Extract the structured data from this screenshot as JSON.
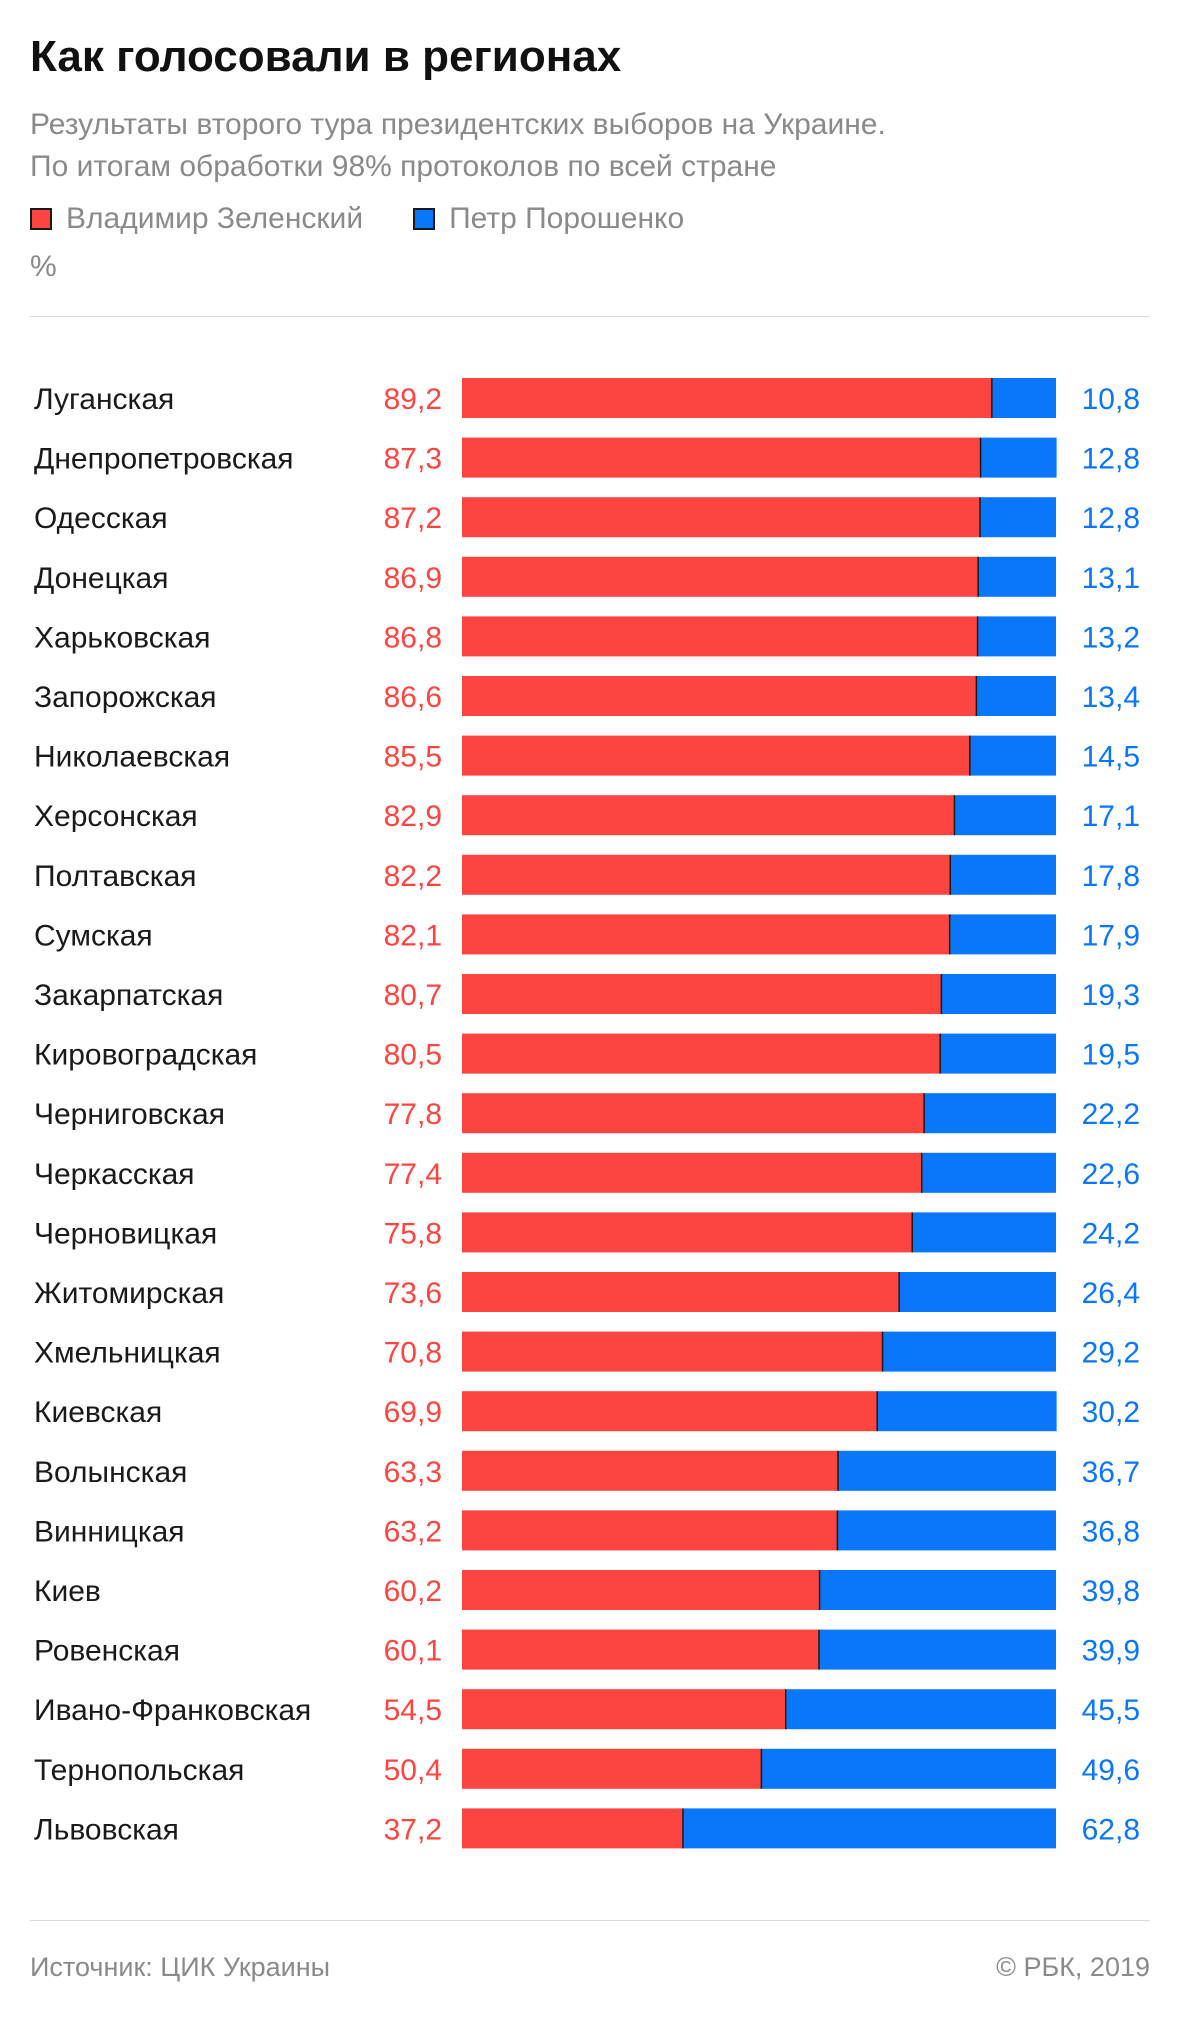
{
  "header": {
    "title": "Как голосовали в регионах",
    "subtitle_line1": "Результаты второго тура президентских выборов на Украине.",
    "subtitle_line2": "По итогам обработки 98% протоколов по всей стране",
    "unit": "%"
  },
  "legend": [
    {
      "label": "Владимир Зеленский",
      "color": "#fc4440"
    },
    {
      "label": "Петр Порошенко",
      "color": "#0a76fa"
    }
  ],
  "footer": {
    "source": "Источник: ЦИК Украины",
    "copyright": "© РБК, 2019"
  },
  "chart_data": {
    "type": "bar",
    "orientation": "horizontal",
    "stacked": true,
    "categories": [
      "Луганская",
      "Днепропетровская",
      "Одесская",
      "Донецкая",
      "Харьковская",
      "Запорожская",
      "Николаевская",
      "Херсонская",
      "Полтавская",
      "Сумская",
      "Закарпатская",
      "Кировоградская",
      "Черниговская",
      "Черкасская",
      "Черновицкая",
      "Житомирская",
      "Хмельницкая",
      "Киевская",
      "Волынская",
      "Винницкая",
      "Киев",
      "Ровенская",
      "Ивано-Франковская",
      "Тернопольская",
      "Львовская"
    ],
    "series": [
      {
        "name": "Владимир Зеленский",
        "color": "#fc4440",
        "values": [
          89.2,
          87.3,
          87.2,
          86.9,
          86.8,
          86.6,
          85.5,
          82.9,
          82.2,
          82.1,
          80.7,
          80.5,
          77.8,
          77.4,
          75.8,
          73.6,
          70.8,
          69.9,
          63.3,
          63.2,
          60.2,
          60.1,
          54.5,
          50.4,
          37.2
        ],
        "labels": [
          "89,2",
          "87,3",
          "87,2",
          "86,9",
          "86,8",
          "86,6",
          "85,5",
          "82,9",
          "82,2",
          "82,1",
          "80,7",
          "80,5",
          "77,8",
          "77,4",
          "75,8",
          "73,6",
          "70,8",
          "69,9",
          "63,3",
          "63,2",
          "60,2",
          "60,1",
          "54,5",
          "50,4",
          "37,2"
        ]
      },
      {
        "name": "Петр Порошенко",
        "color": "#0a76fa",
        "values": [
          10.8,
          12.8,
          12.8,
          13.1,
          13.2,
          13.4,
          14.5,
          17.1,
          17.8,
          17.9,
          19.3,
          19.5,
          22.2,
          22.6,
          24.2,
          26.4,
          29.2,
          30.2,
          36.7,
          36.8,
          39.8,
          39.9,
          45.5,
          49.6,
          62.8
        ],
        "labels": [
          "10,8",
          "12,8",
          "12,8",
          "13,1",
          "13,2",
          "13,4",
          "14,5",
          "17,1",
          "17,8",
          "17,9",
          "19,3",
          "19,5",
          "22,2",
          "22,6",
          "24,2",
          "26,4",
          "29,2",
          "30,2",
          "36,7",
          "36,8",
          "39,8",
          "39,9",
          "45,5",
          "49,6",
          "62,8"
        ]
      }
    ],
    "xlim": [
      0,
      100
    ],
    "grid": false
  }
}
